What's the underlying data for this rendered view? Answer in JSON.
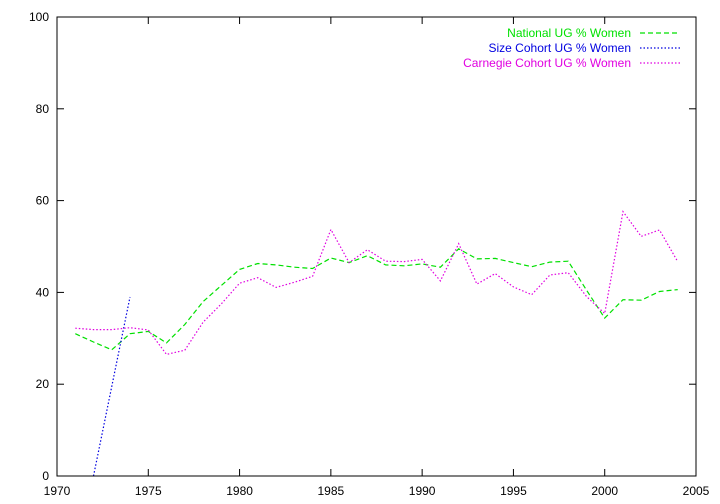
{
  "chart_data": {
    "type": "line",
    "title": "",
    "xlabel": "",
    "ylabel": "",
    "xlim": [
      1970,
      2005
    ],
    "ylim": [
      0,
      100
    ],
    "x_ticks": [
      1970,
      1975,
      1980,
      1985,
      1990,
      1995,
      2000,
      2005
    ],
    "y_ticks": [
      0,
      20,
      40,
      60,
      80,
      100
    ],
    "x_tick_labels": [
      "1970",
      "1975",
      "1980",
      "1985",
      "1990",
      "1995",
      "2000",
      "2005"
    ],
    "y_tick_labels": [
      "0",
      "20",
      "40",
      "60",
      "80",
      "100"
    ],
    "grid": false,
    "legend_position": "top-right",
    "series": [
      {
        "name": "National UG % Women",
        "color": "#00e000",
        "dash": "dashed",
        "x": [
          1971,
          1972,
          1973,
          1974,
          1975,
          1976,
          1977,
          1978,
          1979,
          1980,
          1981,
          1982,
          1983,
          1984,
          1985,
          1986,
          1987,
          1988,
          1989,
          1990,
          1991,
          1992,
          1993,
          1994,
          1995,
          1996,
          1997,
          1998,
          1999,
          2000,
          2001,
          2002,
          2003,
          2004
        ],
        "y": [
          31,
          29.2,
          27.5,
          31,
          31.5,
          29,
          33,
          38,
          41.5,
          45,
          46.3,
          46,
          45.5,
          45.2,
          47.5,
          46.5,
          48,
          46,
          45.8,
          46.2,
          45.5,
          49.5,
          47.3,
          47.4,
          46.5,
          45.6,
          46.6,
          46.8,
          40.5,
          34.4,
          38.4,
          38.3,
          40.2,
          40.6
        ]
      },
      {
        "name": "Size Cohort UG % Women",
        "color": "#0000e0",
        "dash": "dotted",
        "x": [
          1972,
          1974
        ],
        "y": [
          0,
          39
        ]
      },
      {
        "name": "Carnegie Cohort UG % Women",
        "color": "#e000e0",
        "dash": "dotted",
        "x": [
          1971,
          1972,
          1973,
          1974,
          1975,
          1976,
          1977,
          1978,
          1979,
          1980,
          1981,
          1982,
          1983,
          1984,
          1985,
          1986,
          1987,
          1988,
          1989,
          1990,
          1991,
          1992,
          1993,
          1994,
          1995,
          1996,
          1997,
          1998,
          1999,
          2000,
          2001,
          2002,
          2003,
          2004
        ],
        "y": [
          32.2,
          31.9,
          31.9,
          32.3,
          31.8,
          26.5,
          27.4,
          33.5,
          37.5,
          42,
          43.2,
          41.1,
          42.2,
          43.5,
          53.7,
          46.5,
          49.3,
          46.8,
          46.7,
          47.2,
          42.5,
          50.6,
          41.8,
          44.1,
          41.2,
          39.5,
          43.8,
          44.3,
          39.1,
          35.4,
          57.6,
          52.2,
          53.6,
          46.7
        ]
      }
    ]
  }
}
